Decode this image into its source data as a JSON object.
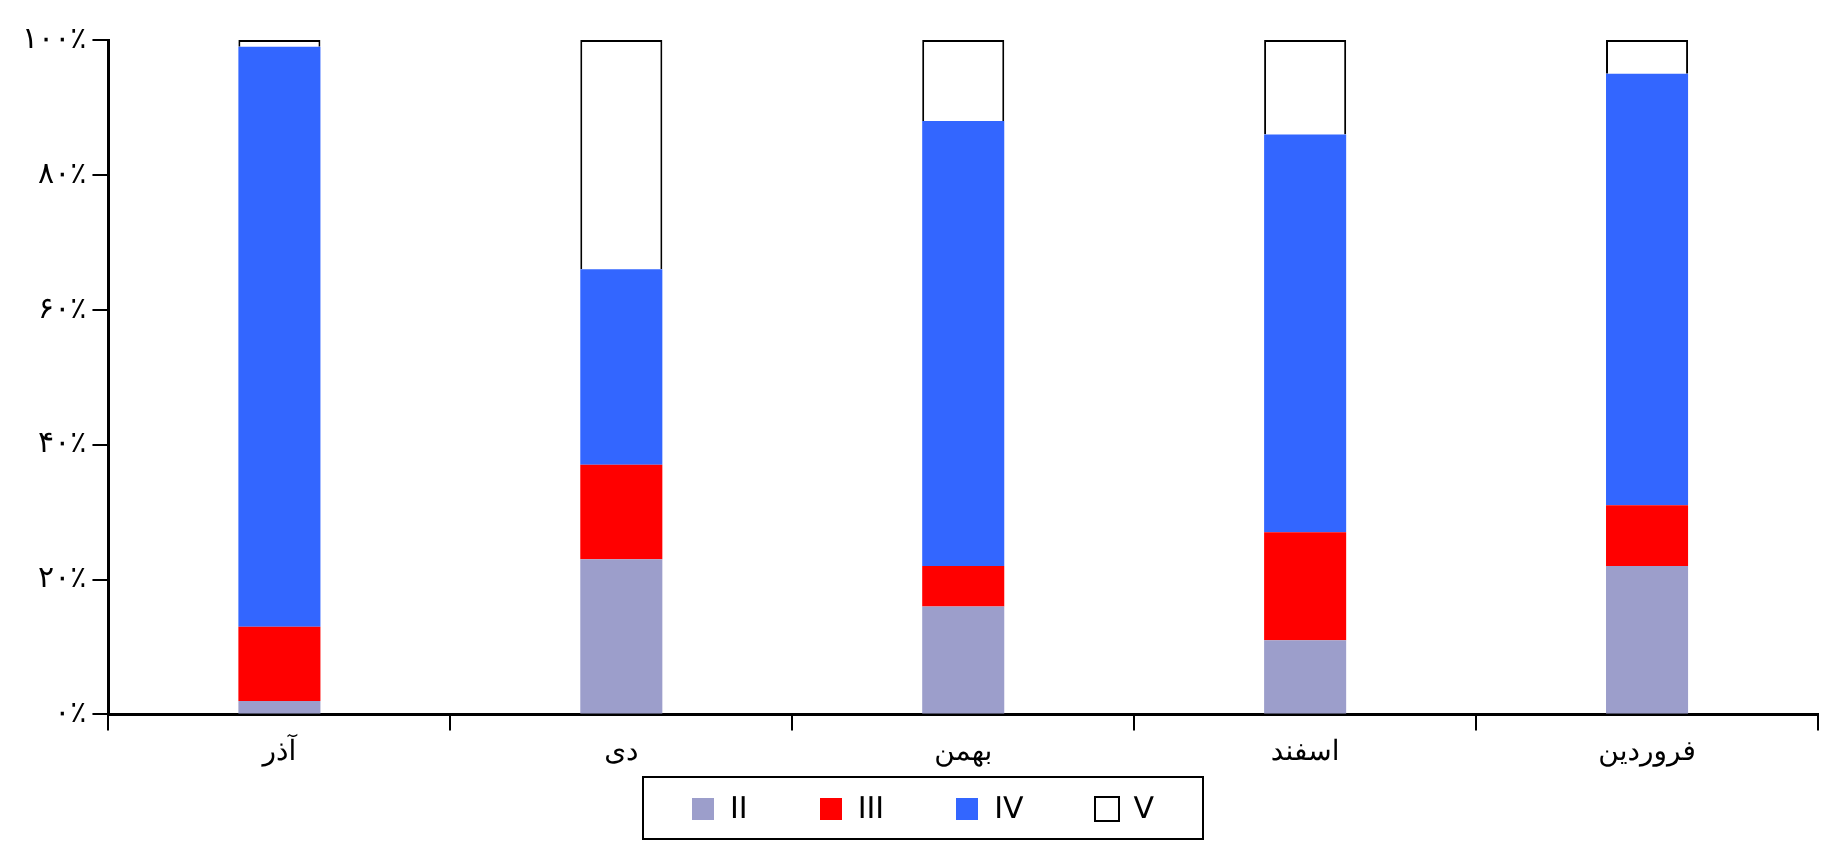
{
  "chart_data": {
    "type": "bar",
    "stacked": true,
    "categories": [
      "آذر",
      "دی",
      "بهمن",
      "اسفند",
      "فروردین"
    ],
    "series": [
      {
        "name": "II",
        "color": "#9c9ecb",
        "values": [
          2,
          23,
          16,
          11,
          22
        ]
      },
      {
        "name": "III",
        "color": "#ff0000",
        "values": [
          11,
          14,
          6,
          16,
          9
        ]
      },
      {
        "name": "IV",
        "color": "#3366ff",
        "values": [
          86,
          29,
          66,
          59,
          64
        ]
      },
      {
        "name": "V",
        "color": "#ffffff",
        "values": [
          1,
          34,
          12,
          14,
          5
        ]
      }
    ],
    "ylim": [
      0,
      100
    ],
    "yticks": [
      {
        "value": 0,
        "label": "۰٪"
      },
      {
        "value": 20,
        "label": "۲۰٪"
      },
      {
        "value": 40,
        "label": "۴۰٪"
      },
      {
        "value": 60,
        "label": "۶۰٪"
      },
      {
        "value": 80,
        "label": "۸۰٪"
      },
      {
        "value": 100,
        "label": "۱۰۰٪"
      }
    ],
    "grid": false,
    "legend": "bottom"
  }
}
